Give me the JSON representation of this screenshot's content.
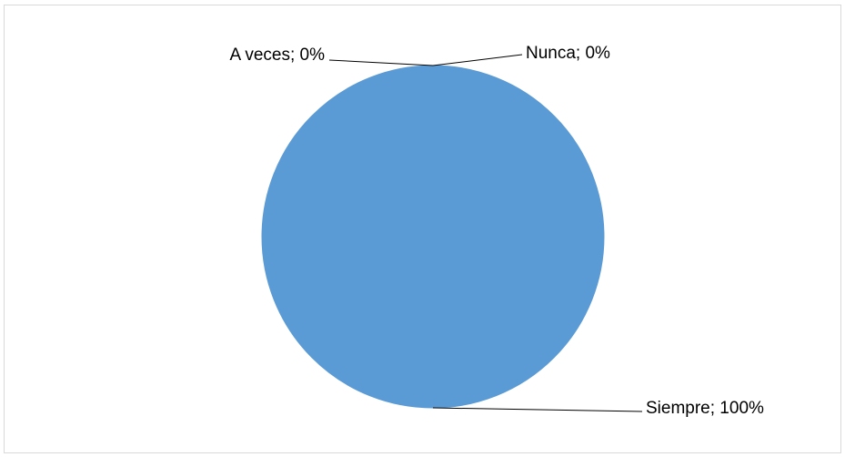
{
  "chart_data": {
    "type": "pie",
    "title": "",
    "categories": [
      "Siempre",
      "A veces",
      "Nunca"
    ],
    "values": [
      100,
      0,
      0
    ],
    "data_labels": [
      "Siempre; 100%",
      "A veces; 0%",
      "Nunca; 0%"
    ],
    "colors": [
      "#5b9bd5",
      "#ed7d31",
      "#a5a5a5"
    ],
    "legend": "none"
  }
}
